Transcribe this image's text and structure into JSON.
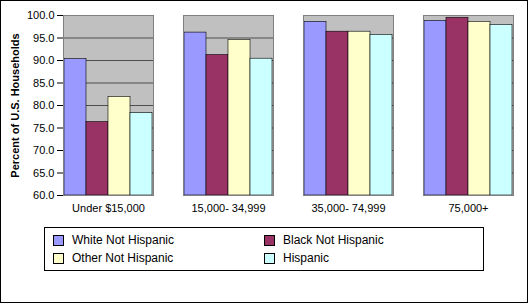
{
  "chart_data": {
    "type": "bar",
    "y_label": "Percent of U.S. Households",
    "categories": [
      "Under $15,000",
      "15,000- 34,999",
      "35,000- 74,999",
      "75,000+"
    ],
    "series": [
      {
        "name": "White Not Hispanic",
        "color": "#9999FF",
        "values": [
          90.3,
          96.2,
          98.6,
          98.8
        ]
      },
      {
        "name": "Black Not Hispanic",
        "color": "#993366",
        "values": [
          76.3,
          91.2,
          96.4,
          99.5
        ]
      },
      {
        "name": "Other Not Hispanic",
        "color": "#FFFFCC",
        "values": [
          81.9,
          94.6,
          96.4,
          98.6
        ]
      },
      {
        "name": "Hispanic",
        "color": "#CCFFFF",
        "values": [
          78.3,
          90.4,
          95.7,
          97.9
        ]
      }
    ],
    "ylim": [
      60,
      100
    ],
    "yticks": [
      {
        "value": 60,
        "label": "60.0"
      },
      {
        "value": 65,
        "label": "65.0"
      },
      {
        "value": 70,
        "label": "70.0"
      },
      {
        "value": 75,
        "label": "75.0"
      },
      {
        "value": 80,
        "label": "80.0"
      },
      {
        "value": 85,
        "label": "85.0"
      },
      {
        "value": 90,
        "label": "90.0"
      },
      {
        "value": 95,
        "label": "95.0"
      },
      {
        "value": 100,
        "label": "100.0"
      }
    ],
    "grid": true,
    "legend": "bottom"
  }
}
